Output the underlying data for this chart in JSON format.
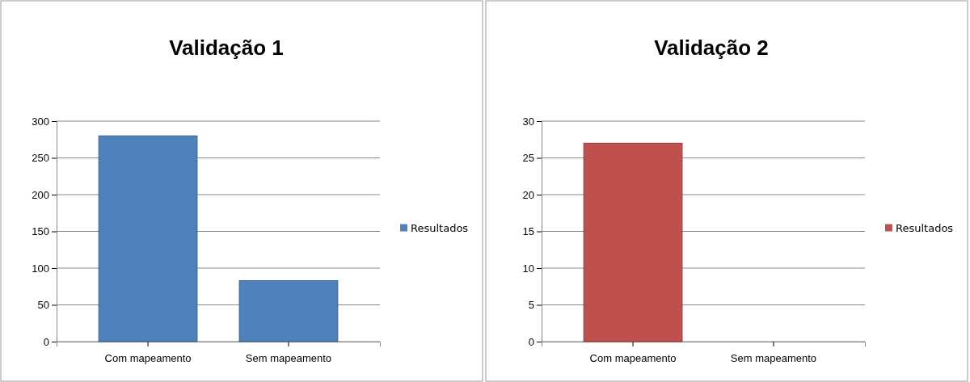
{
  "chart_data": [
    {
      "type": "bar",
      "title": "Validação 1",
      "categories": [
        "Com mapeamento",
        "Sem mapeamento"
      ],
      "series": [
        {
          "name": "Resultados",
          "color": "#4f81bd",
          "values": [
            280,
            83
          ]
        }
      ],
      "ylim": [
        0,
        300
      ],
      "yticks": [
        0,
        50,
        100,
        150,
        200,
        250,
        300
      ],
      "grid": "y",
      "legend": "right"
    },
    {
      "type": "bar",
      "title": "Validação 2",
      "categories": [
        "Com mapeamento",
        "Sem mapeamento"
      ],
      "series": [
        {
          "name": "Resultados",
          "color": "#c0504d",
          "values": [
            27,
            0
          ]
        }
      ],
      "ylim": [
        0,
        30
      ],
      "yticks": [
        0,
        5,
        10,
        15,
        20,
        25,
        30
      ],
      "grid": "y",
      "legend": "right"
    }
  ]
}
